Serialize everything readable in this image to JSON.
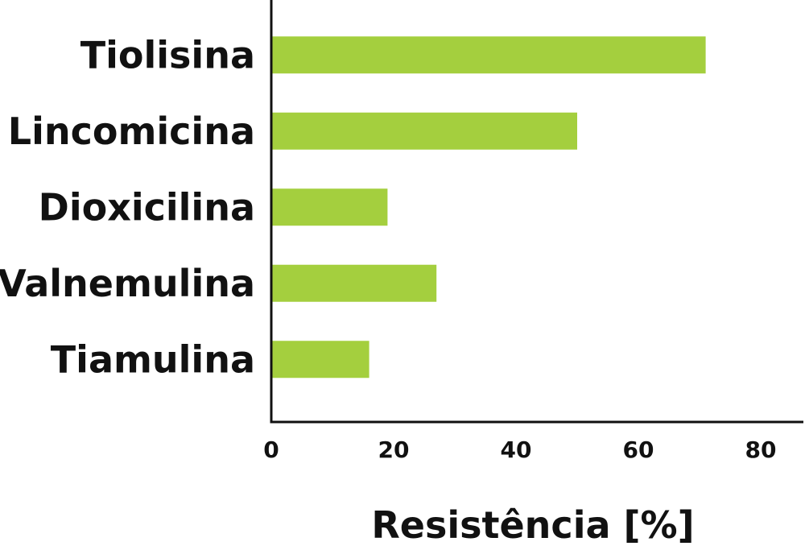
{
  "chart_data": {
    "type": "bar",
    "orientation": "horizontal",
    "categories": [
      "Tiolisina",
      "Lincomicina",
      "Dioxicilina",
      "Valnemulina",
      "Tiamulina"
    ],
    "values": [
      71,
      50,
      19,
      27,
      16
    ],
    "xlabel": "Resistência [%]",
    "ylabel": "",
    "title": "",
    "xlim": [
      0,
      85
    ],
    "xticks": [
      0,
      20,
      40,
      60,
      80
    ],
    "grid": false,
    "bar_color": "#a4cf3e"
  }
}
